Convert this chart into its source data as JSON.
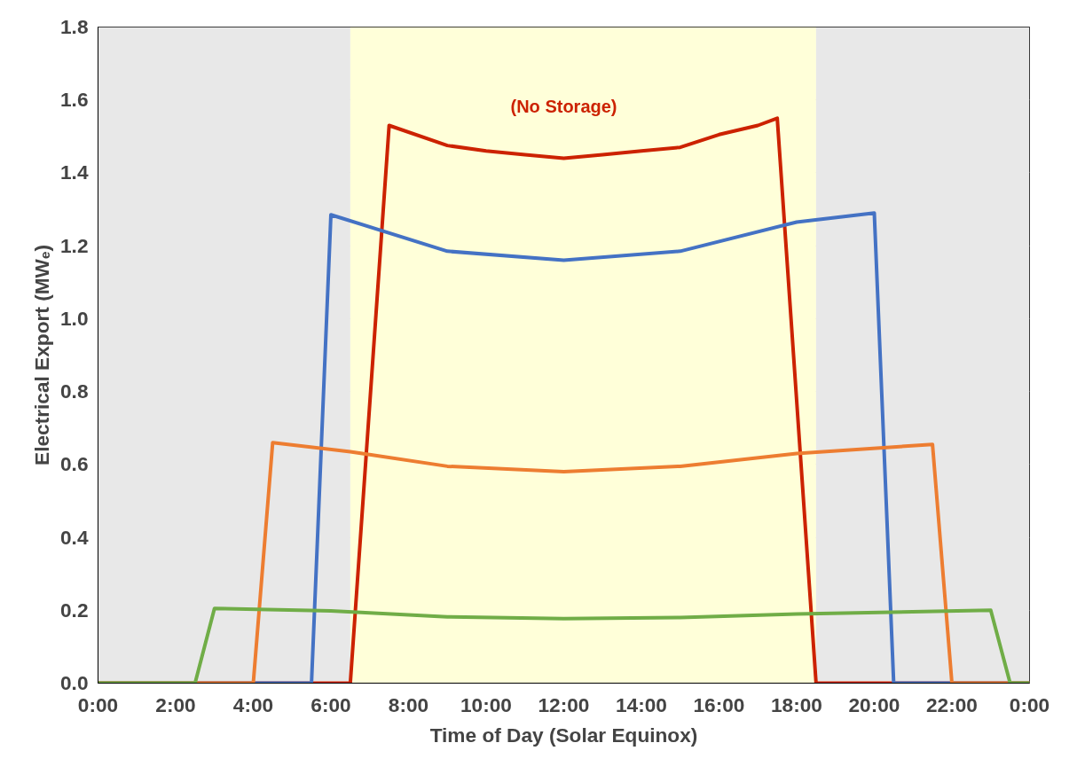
{
  "chart_data": {
    "type": "line",
    "xlabel": "Time of Day (Solar Equinox)",
    "ylabel": "Electrical Export (MWₑ)",
    "xlim": [
      0,
      24
    ],
    "ylim": [
      0,
      1.8
    ],
    "xticks": [
      {
        "value": 0,
        "label": "0:00"
      },
      {
        "value": 2,
        "label": "2:00"
      },
      {
        "value": 4,
        "label": "4:00"
      },
      {
        "value": 6,
        "label": "6:00"
      },
      {
        "value": 8,
        "label": "8:00"
      },
      {
        "value": 10,
        "label": "10:00"
      },
      {
        "value": 12,
        "label": "12:00"
      },
      {
        "value": 14,
        "label": "14:00"
      },
      {
        "value": 16,
        "label": "16:00"
      },
      {
        "value": 18,
        "label": "18:00"
      },
      {
        "value": 20,
        "label": "20:00"
      },
      {
        "value": 22,
        "label": "22:00"
      },
      {
        "value": 24,
        "label": "0:00"
      }
    ],
    "yticks": [
      {
        "value": 0,
        "label": "0.0"
      },
      {
        "value": 0.2,
        "label": "0.2"
      },
      {
        "value": 0.4,
        "label": "0.4"
      },
      {
        "value": 0.6,
        "label": "0.6"
      },
      {
        "value": 0.8,
        "label": "0.8"
      },
      {
        "value": 1.0,
        "label": "1.0"
      },
      {
        "value": 1.2,
        "label": "1.2"
      },
      {
        "value": 1.4,
        "label": "1.4"
      },
      {
        "value": 1.6,
        "label": "1.6"
      },
      {
        "value": 1.8,
        "label": "1.8"
      }
    ],
    "grid": "y",
    "legend": false,
    "marker": "none",
    "line_style": "solid",
    "bands": [
      {
        "axis": "x",
        "from": 0,
        "to": 6.5,
        "color": "#e8e8e8"
      },
      {
        "axis": "x",
        "from": 6.5,
        "to": 18.5,
        "color": "#ffffd9"
      },
      {
        "axis": "x",
        "from": 18.5,
        "to": 24,
        "color": "#e8e8e8"
      }
    ],
    "series": [
      {
        "name": "(No Storage)",
        "color": "#cc2200",
        "x": [
          0,
          6.5,
          7.5,
          9,
          10,
          11,
          12,
          13,
          14,
          15,
          16,
          17,
          17.5,
          18.5,
          24
        ],
        "values": [
          0,
          0,
          1.53,
          1.475,
          1.46,
          1.45,
          1.44,
          1.45,
          1.46,
          1.47,
          1.505,
          1.53,
          1.55,
          0,
          0
        ]
      },
      {
        "color": "#4472c4",
        "x": [
          0,
          5.5,
          6,
          9,
          12,
          15,
          18,
          20,
          20.5,
          24
        ],
        "values": [
          0,
          0,
          1.285,
          1.185,
          1.16,
          1.185,
          1.265,
          1.29,
          0,
          0
        ]
      },
      {
        "color": "#ed7d31",
        "x": [
          0,
          4,
          4.5,
          6.5,
          9,
          12,
          15,
          18,
          21.5,
          22,
          24
        ],
        "values": [
          0,
          0,
          0.66,
          0.635,
          0.595,
          0.58,
          0.595,
          0.63,
          0.655,
          0,
          0
        ]
      },
      {
        "color": "#70ad47",
        "x": [
          0,
          2.5,
          3,
          6,
          9,
          12,
          15,
          18,
          23,
          23.5,
          24
        ],
        "values": [
          0,
          0,
          0.205,
          0.198,
          0.182,
          0.177,
          0.18,
          0.19,
          0.2,
          0,
          0
        ]
      }
    ]
  }
}
